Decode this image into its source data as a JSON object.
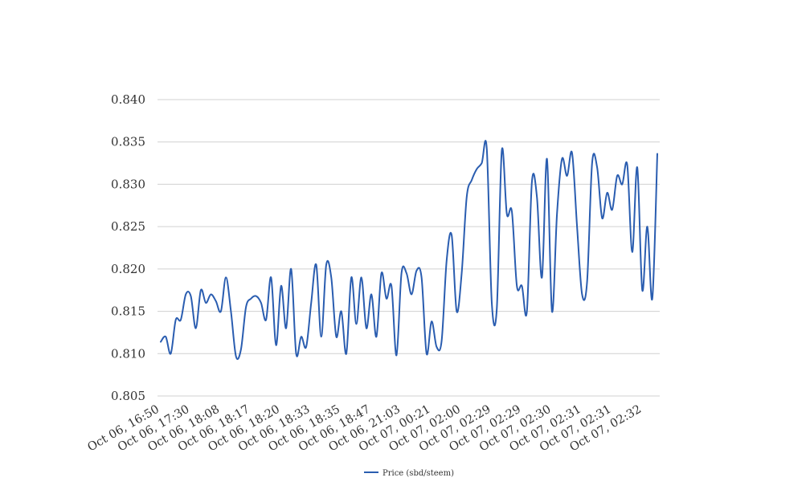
{
  "chart_data": {
    "type": "line",
    "title": "",
    "xlabel": "",
    "ylabel": "",
    "ylim": [
      0.805,
      0.84
    ],
    "yticks": [
      "0.805",
      "0.810",
      "0.815",
      "0.820",
      "0.825",
      "0.830",
      "0.835",
      "0.840"
    ],
    "x_tick_labels": [
      "Oct 06, 16:50",
      "Oct 06, 17:30",
      "Oct 06, 18:08",
      "Oct 06, 18:17",
      "Oct 06, 18:20",
      "Oct 06, 18:33",
      "Oct 06, 18:35",
      "Oct 06, 18:47",
      "Oct 06, 21:03",
      "Oct 07, 00:21",
      "Oct 07, 02:00",
      "Oct 07, 02:29",
      "Oct 07, 02:29",
      "Oct 07, 02:30",
      "Oct 07, 02:31",
      "Oct 07, 02:31",
      "Oct 07, 02:32"
    ],
    "grid": true,
    "legend_position": "bottom",
    "series": [
      {
        "name": "Price (sbd/steem)",
        "color": "#2a5db0",
        "values": [
          0.8114,
          0.812,
          0.81,
          0.814,
          0.814,
          0.817,
          0.8168,
          0.813,
          0.8175,
          0.816,
          0.817,
          0.8162,
          0.815,
          0.819,
          0.815,
          0.8097,
          0.8105,
          0.8155,
          0.8165,
          0.8168,
          0.816,
          0.814,
          0.819,
          0.811,
          0.818,
          0.813,
          0.82,
          0.81,
          0.812,
          0.8108,
          0.816,
          0.8205,
          0.812,
          0.8205,
          0.819,
          0.812,
          0.815,
          0.81,
          0.819,
          0.8135,
          0.819,
          0.813,
          0.817,
          0.812,
          0.8195,
          0.8165,
          0.818,
          0.8098,
          0.8195,
          0.8195,
          0.817,
          0.8198,
          0.819,
          0.81,
          0.8138,
          0.8108,
          0.8115,
          0.821,
          0.824,
          0.815,
          0.8195,
          0.8285,
          0.8305,
          0.8318,
          0.8325,
          0.8342,
          0.816,
          0.8153,
          0.834,
          0.8265,
          0.8268,
          0.818,
          0.818,
          0.815,
          0.8303,
          0.8285,
          0.819,
          0.833,
          0.815,
          0.8265,
          0.833,
          0.831,
          0.8337,
          0.825,
          0.817,
          0.8185,
          0.8325,
          0.832,
          0.826,
          0.829,
          0.827,
          0.831,
          0.83,
          0.8323,
          0.822,
          0.832,
          0.8175,
          0.825,
          0.8165,
          0.8336
        ]
      }
    ]
  }
}
